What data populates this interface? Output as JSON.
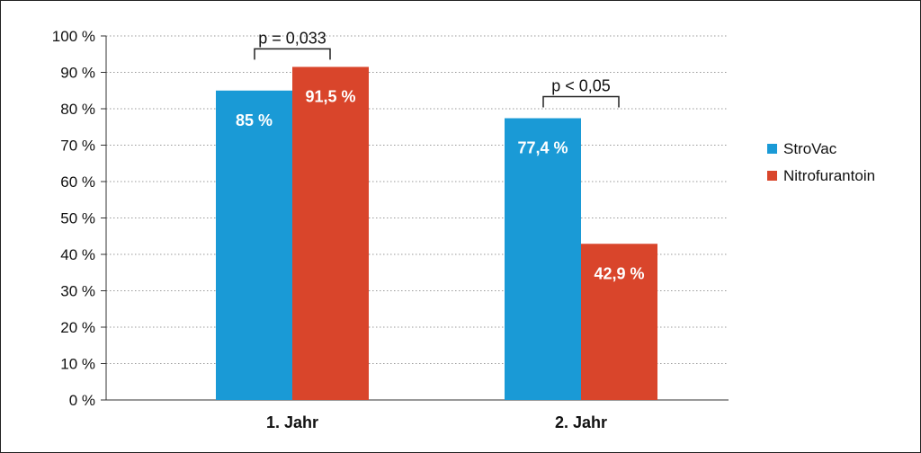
{
  "chart_data": {
    "type": "bar",
    "categories": [
      "1. Jahr",
      "2. Jahr"
    ],
    "series": [
      {
        "name": "StroVac",
        "values": [
          85,
          77.4
        ],
        "color": "#1a9ad6",
        "value_labels": [
          "85 %",
          "77,4 %"
        ]
      },
      {
        "name": "Nitrofurantoin",
        "values": [
          91.5,
          42.9
        ],
        "color": "#d9452b",
        "value_labels": [
          "91,5 %",
          "42,9 %"
        ]
      }
    ],
    "ylim": [
      0,
      100
    ],
    "y_ticks": [
      0,
      10,
      20,
      30,
      40,
      50,
      60,
      70,
      80,
      90,
      100
    ],
    "y_tick_labels": [
      "0 %",
      "10 %",
      "20 %",
      "30 %",
      "40 %",
      "50 %",
      "60 %",
      "70 %",
      "80 %",
      "90 %",
      "100 %"
    ],
    "grid": "horizontal dotted",
    "legend_position": "right",
    "annotations": [
      {
        "text": "p = 0,033",
        "category_index": 0
      },
      {
        "text": "p < 0,05",
        "category_index": 1
      }
    ]
  }
}
